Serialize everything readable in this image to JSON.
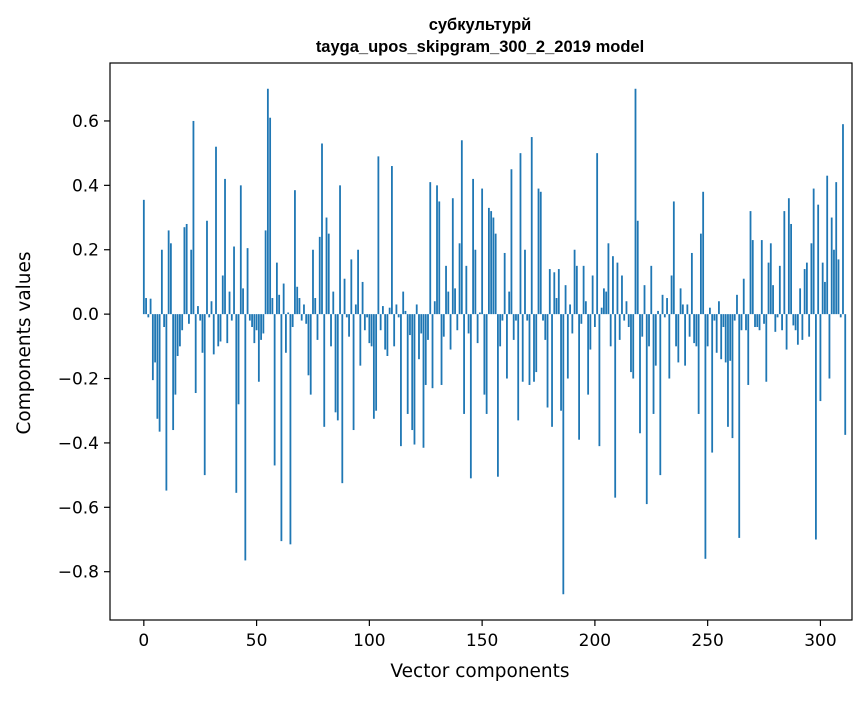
{
  "chart_data": {
    "type": "bar",
    "title": "субкультурй\ntayga_upos_skipgram_300_2_2019 model",
    "title_lines": [
      "субкультурй",
      "tayga_upos_skipgram_300_2_2019 model"
    ],
    "xlabel": "Vector components",
    "ylabel": "Components values",
    "xlim": [
      -15,
      314
    ],
    "ylim": [
      -0.95,
      0.78
    ],
    "xticks": [
      0,
      50,
      100,
      150,
      200,
      250,
      300
    ],
    "yticks": [
      -0.8,
      -0.6,
      -0.4,
      -0.2,
      0.0,
      0.2,
      0.4,
      0.6
    ],
    "ytick_labels": [
      "−0.8",
      "−0.6",
      "−0.4",
      "−0.2",
      "0.0",
      "0.2",
      "0.4",
      "0.6"
    ],
    "xtick_labels": [
      "0",
      "50",
      "100",
      "150",
      "200",
      "250",
      "300"
    ],
    "bar_color": "#1f77b4",
    "grid": false,
    "values": [
      0.355,
      0.05,
      -0.01,
      0.048,
      -0.205,
      -0.15,
      -0.325,
      -0.365,
      0.2,
      -0.04,
      -0.548,
      0.26,
      0.22,
      -0.36,
      -0.25,
      -0.13,
      -0.1,
      -0.05,
      0.27,
      0.28,
      -0.03,
      0.2,
      0.6,
      -0.245,
      0.025,
      -0.02,
      -0.12,
      -0.5,
      0.29,
      -0.01,
      0.04,
      -0.125,
      0.52,
      -0.1,
      -0.085,
      0.12,
      0.42,
      -0.09,
      0.07,
      -0.02,
      0.21,
      -0.555,
      -0.28,
      0.4,
      0.08,
      -0.765,
      0.205,
      -0.02,
      -0.04,
      -0.09,
      -0.05,
      -0.21,
      -0.08,
      -0.06,
      0.26,
      0.7,
      0.61,
      0.05,
      -0.47,
      0.16,
      0.06,
      -0.705,
      0.095,
      -0.12,
      0.005,
      -0.715,
      -0.04,
      0.385,
      0.085,
      0.05,
      -0.02,
      0.03,
      -0.03,
      -0.19,
      -0.25,
      0.2,
      0.05,
      -0.08,
      0.24,
      0.53,
      -0.35,
      0.3,
      0.25,
      -0.1,
      0.07,
      -0.305,
      -0.33,
      0.4,
      -0.525,
      0.11,
      -0.01,
      -0.07,
      0.17,
      -0.36,
      0.03,
      0.2,
      -0.16,
      0.1,
      -0.05,
      -0.01,
      -0.09,
      -0.1,
      -0.325,
      -0.3,
      0.49,
      -0.05,
      0.025,
      -0.11,
      -0.13,
      0.02,
      0.46,
      -0.1,
      0.03,
      -0.01,
      -0.41,
      0.07,
      0.01,
      -0.31,
      -0.065,
      -0.36,
      -0.405,
      0.03,
      -0.14,
      -0.06,
      -0.415,
      -0.22,
      -0.08,
      0.41,
      -0.23,
      0.04,
      0.4,
      0.35,
      -0.22,
      -0.07,
      0.15,
      0.07,
      -0.11,
      0.36,
      0.08,
      -0.05,
      0.22,
      0.54,
      -0.31,
      0.15,
      -0.06,
      -0.51,
      0.42,
      0.2,
      -0.09,
      0.005,
      0.39,
      -0.25,
      -0.31,
      0.33,
      0.32,
      0.3,
      0.25,
      -0.505,
      -0.1,
      -0.02,
      0.19,
      -0.2,
      0.07,
      0.45,
      -0.08,
      -0.02,
      -0.33,
      0.5,
      -0.21,
      0.2,
      -0.02,
      -0.22,
      0.55,
      -0.21,
      -0.18,
      0.39,
      0.38,
      -0.02,
      -0.08,
      -0.29,
      0.14,
      -0.35,
      0.13,
      0.05,
      0.14,
      -0.3,
      -0.87,
      0.09,
      -0.2,
      0.03,
      -0.06,
      0.2,
      0.15,
      -0.39,
      -0.03,
      0.15,
      0.04,
      -0.25,
      -0.11,
      0.12,
      -0.04,
      0.5,
      -0.41,
      0.02,
      0.08,
      0.07,
      0.22,
      -0.1,
      0.18,
      -0.57,
      0.16,
      -0.08,
      0.12,
      -0.02,
      0.04,
      -0.04,
      -0.18,
      -0.2,
      0.7,
      0.29,
      -0.37,
      -0.07,
      0.09,
      -0.59,
      -0.1,
      0.15,
      -0.31,
      -0.16,
      0.01,
      -0.5,
      0.06,
      -0.01,
      0.05,
      -0.2,
      0.12,
      0.35,
      -0.1,
      -0.15,
      0.08,
      0.03,
      -0.16,
      0.03,
      -0.07,
      0.19,
      -0.09,
      -0.1,
      -0.31,
      0.25,
      0.38,
      -0.76,
      -0.1,
      0.02,
      -0.43,
      -0.02,
      -0.12,
      0.04,
      -0.14,
      -0.04,
      -0.15,
      -0.35,
      -0.145,
      -0.385,
      -0.02,
      0.06,
      -0.695,
      -0.05,
      0.11,
      -0.05,
      -0.22,
      0.32,
      0.23,
      -0.04,
      -0.04,
      -0.05,
      0.23,
      -0.03,
      -0.21,
      0.16,
      0.22,
      0.09,
      -0.055,
      -0.01,
      0.15,
      -0.05,
      0.32,
      -0.11,
      0.36,
      0.28,
      -0.035,
      -0.05,
      -0.095,
      0.08,
      -0.08,
      0.14,
      0.16,
      -0.07,
      0.22,
      0.39,
      -0.7,
      0.34,
      -0.27,
      0.16,
      0.1,
      0.43,
      -0.2,
      0.3,
      0.2,
      0.41,
      0.17,
      -0.01,
      0.59,
      -0.375
    ]
  }
}
